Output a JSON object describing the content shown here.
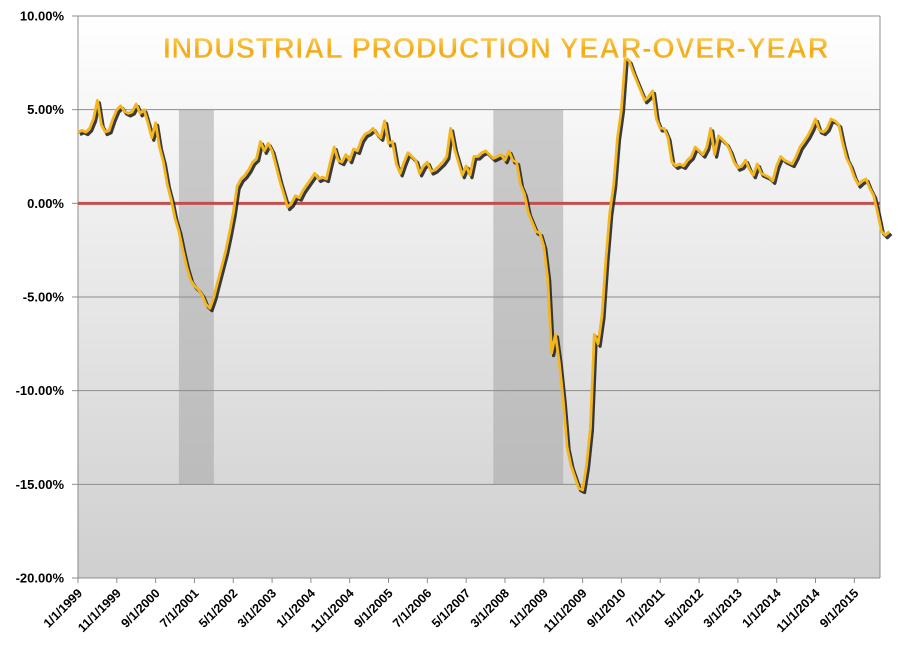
{
  "chart_data": {
    "type": "line",
    "title": "INDUSTRIAL PRODUCTION YEAR-OVER-YEAR",
    "xlabel": "",
    "ylabel": "",
    "ylim": [
      -20,
      10
    ],
    "x_range": [
      "1999-01",
      "2015-12"
    ],
    "y_ticks": [
      10,
      5,
      0,
      -5,
      -10,
      -15,
      -20
    ],
    "y_tick_labels": [
      "10.00%",
      "5.00%",
      "0.00%",
      "-5.00%",
      "-10.00%",
      "-15.00%",
      "-20.00%"
    ],
    "x_ticks": [
      "1999-01",
      "1999-11",
      "2000-09",
      "2001-07",
      "2002-05",
      "2003-03",
      "2004-01",
      "2004-11",
      "2005-09",
      "2006-07",
      "2007-05",
      "2008-03",
      "2009-01",
      "2009-11",
      "2010-09",
      "2011-07",
      "2012-05",
      "2013-03",
      "2014-01",
      "2014-11",
      "2015-09"
    ],
    "x_tick_labels": [
      "1/1/1999",
      "11/1/1999",
      "9/1/2000",
      "7/1/2001",
      "5/1/2002",
      "3/1/2003",
      "1/1/2004",
      "11/1/2004",
      "9/1/2005",
      "7/1/2006",
      "5/1/2007",
      "3/1/2008",
      "1/1/2009",
      "11/1/2009",
      "9/1/2010",
      "7/1/2011",
      "5/1/2012",
      "3/1/2013",
      "1/1/2014",
      "11/1/2014",
      "9/1/2015"
    ],
    "grid": true,
    "legend": "none",
    "colors": {
      "line": "#f4b61c",
      "line_shadow": "#1a1a1a",
      "zero_line": "#c0504d",
      "recession": "#a6a6a6",
      "title": "#f6b21a"
    },
    "recessions": [
      {
        "start": "2001-03",
        "end": "2001-12",
        "ymin": -15,
        "ymax": 5
      },
      {
        "start": "2007-12",
        "end": "2009-06",
        "ymin": -15,
        "ymax": 5
      }
    ],
    "series": [
      {
        "points": [
          [
            "1999-01",
            3.8
          ],
          [
            "1999-02",
            3.9
          ],
          [
            "1999-03",
            3.8
          ],
          [
            "1999-04",
            4.0
          ],
          [
            "1999-05",
            4.5
          ],
          [
            "1999-06",
            5.5
          ],
          [
            "1999-07",
            4.2
          ],
          [
            "1999-08",
            3.8
          ],
          [
            "1999-09",
            3.9
          ],
          [
            "1999-10",
            4.5
          ],
          [
            "1999-11",
            5.0
          ],
          [
            "1999-12",
            5.2
          ],
          [
            "2000-01",
            4.9
          ],
          [
            "2000-02",
            4.8
          ],
          [
            "2000-03",
            4.9
          ],
          [
            "2000-04",
            5.3
          ],
          [
            "2000-05",
            4.8
          ],
          [
            "2000-06",
            5.0
          ],
          [
            "2000-07",
            4.3
          ],
          [
            "2000-08",
            3.5
          ],
          [
            "2000-09",
            4.3
          ],
          [
            "2000-10",
            3.0
          ],
          [
            "2000-11",
            2.2
          ],
          [
            "2000-12",
            1.0
          ],
          [
            "2001-01",
            0.2
          ],
          [
            "2001-02",
            -0.8
          ],
          [
            "2001-03",
            -1.5
          ],
          [
            "2001-04",
            -2.5
          ],
          [
            "2001-05",
            -3.4
          ],
          [
            "2001-06",
            -4.1
          ],
          [
            "2001-07",
            -4.4
          ],
          [
            "2001-08",
            -4.6
          ],
          [
            "2001-09",
            -4.9
          ],
          [
            "2001-10",
            -5.4
          ],
          [
            "2001-11",
            -5.6
          ],
          [
            "2001-12",
            -5.0
          ],
          [
            "2002-01",
            -4.2
          ],
          [
            "2002-02",
            -3.4
          ],
          [
            "2002-03",
            -2.6
          ],
          [
            "2002-04",
            -1.6
          ],
          [
            "2002-05",
            -0.5
          ],
          [
            "2002-06",
            0.9
          ],
          [
            "2002-07",
            1.3
          ],
          [
            "2002-08",
            1.5
          ],
          [
            "2002-09",
            1.8
          ],
          [
            "2002-10",
            2.2
          ],
          [
            "2002-11",
            2.4
          ],
          [
            "2002-12",
            3.3
          ],
          [
            "2003-01",
            2.8
          ],
          [
            "2003-02",
            3.2
          ],
          [
            "2003-03",
            2.8
          ],
          [
            "2003-04",
            2.0
          ],
          [
            "2003-05",
            1.2
          ],
          [
            "2003-06",
            0.5
          ],
          [
            "2003-07",
            -0.2
          ],
          [
            "2003-08",
            0.0
          ],
          [
            "2003-09",
            0.4
          ],
          [
            "2003-10",
            0.3
          ],
          [
            "2003-11",
            0.7
          ],
          [
            "2003-12",
            1.0
          ],
          [
            "2004-01",
            1.3
          ],
          [
            "2004-02",
            1.6
          ],
          [
            "2004-03",
            1.3
          ],
          [
            "2004-04",
            1.4
          ],
          [
            "2004-05",
            1.3
          ],
          [
            "2004-06",
            2.2
          ],
          [
            "2004-07",
            3.0
          ],
          [
            "2004-08",
            2.3
          ],
          [
            "2004-09",
            2.2
          ],
          [
            "2004-10",
            2.6
          ],
          [
            "2004-11",
            2.3
          ],
          [
            "2004-12",
            2.9
          ],
          [
            "2005-01",
            2.8
          ],
          [
            "2005-02",
            3.4
          ],
          [
            "2005-03",
            3.7
          ],
          [
            "2005-04",
            3.8
          ],
          [
            "2005-05",
            4.0
          ],
          [
            "2005-06",
            3.7
          ],
          [
            "2005-07",
            3.5
          ],
          [
            "2005-08",
            4.4
          ],
          [
            "2005-09",
            3.2
          ],
          [
            "2005-10",
            3.3
          ],
          [
            "2005-11",
            2.1
          ],
          [
            "2005-12",
            1.6
          ],
          [
            "2006-01",
            2.2
          ],
          [
            "2006-02",
            2.7
          ],
          [
            "2006-03",
            2.5
          ],
          [
            "2006-04",
            2.3
          ],
          [
            "2006-05",
            1.6
          ],
          [
            "2006-06",
            2.0
          ],
          [
            "2006-07",
            2.2
          ],
          [
            "2006-08",
            1.7
          ],
          [
            "2006-09",
            1.8
          ],
          [
            "2006-10",
            2.0
          ],
          [
            "2006-11",
            2.2
          ],
          [
            "2006-12",
            2.5
          ],
          [
            "2007-01",
            4.0
          ],
          [
            "2007-02",
            2.9
          ],
          [
            "2007-03",
            2.2
          ],
          [
            "2007-04",
            1.5
          ],
          [
            "2007-05",
            2.0
          ],
          [
            "2007-06",
            1.5
          ],
          [
            "2007-07",
            2.5
          ],
          [
            "2007-08",
            2.5
          ],
          [
            "2007-09",
            2.7
          ],
          [
            "2007-10",
            2.8
          ],
          [
            "2007-11",
            2.6
          ],
          [
            "2007-12",
            2.4
          ],
          [
            "2008-01",
            2.5
          ],
          [
            "2008-02",
            2.6
          ],
          [
            "2008-03",
            2.3
          ],
          [
            "2008-04",
            2.8
          ],
          [
            "2008-05",
            2.3
          ],
          [
            "2008-06",
            2.2
          ],
          [
            "2008-07",
            1.0
          ],
          [
            "2008-08",
            0.5
          ],
          [
            "2008-09",
            -0.5
          ],
          [
            "2008-10",
            -1.0
          ],
          [
            "2008-11",
            -1.5
          ],
          [
            "2008-12",
            -1.6
          ],
          [
            "2009-01",
            -2.3
          ],
          [
            "2009-02",
            -4.0
          ],
          [
            "2009-03",
            -8.0
          ],
          [
            "2009-04",
            -7.0
          ],
          [
            "2009-05",
            -8.5
          ],
          [
            "2009-06",
            -10.5
          ],
          [
            "2009-07",
            -13.0
          ],
          [
            "2009-08",
            -14.0
          ],
          [
            "2009-09",
            -14.6
          ],
          [
            "2009-10",
            -15.2
          ],
          [
            "2009-11",
            -15.3
          ],
          [
            "2009-12",
            -14.0
          ],
          [
            "2010-01",
            -12.0
          ],
          [
            "2010-02",
            -7.0
          ],
          [
            "2010-03",
            -7.5
          ],
          [
            "2010-04",
            -6.0
          ],
          [
            "2010-05",
            -3.0
          ],
          [
            "2010-06",
            -0.5
          ],
          [
            "2010-07",
            1.0
          ],
          [
            "2010-08",
            3.5
          ],
          [
            "2010-09",
            5.0
          ],
          [
            "2010-10",
            7.8
          ],
          [
            "2010-11",
            7.6
          ],
          [
            "2010-12",
            7.0
          ],
          [
            "2011-01",
            6.5
          ],
          [
            "2011-02",
            6.0
          ],
          [
            "2011-03",
            5.5
          ],
          [
            "2011-04",
            5.7
          ],
          [
            "2011-05",
            6.0
          ],
          [
            "2011-06",
            4.5
          ],
          [
            "2011-07",
            4.0
          ],
          [
            "2011-08",
            4.0
          ],
          [
            "2011-09",
            3.5
          ],
          [
            "2011-10",
            2.2
          ],
          [
            "2011-11",
            2.0
          ],
          [
            "2011-12",
            2.1
          ],
          [
            "2012-01",
            2.0
          ],
          [
            "2012-02",
            2.3
          ],
          [
            "2012-03",
            2.5
          ],
          [
            "2012-04",
            3.0
          ],
          [
            "2012-05",
            2.8
          ],
          [
            "2012-06",
            2.6
          ],
          [
            "2012-07",
            3.0
          ],
          [
            "2012-08",
            4.0
          ],
          [
            "2012-09",
            2.6
          ],
          [
            "2012-10",
            3.6
          ],
          [
            "2012-11",
            3.4
          ],
          [
            "2012-12",
            3.2
          ],
          [
            "2013-01",
            2.8
          ],
          [
            "2013-02",
            2.2
          ],
          [
            "2013-03",
            1.9
          ],
          [
            "2013-04",
            2.0
          ],
          [
            "2013-05",
            2.3
          ],
          [
            "2013-06",
            1.8
          ],
          [
            "2013-07",
            1.5
          ],
          [
            "2013-08",
            2.1
          ],
          [
            "2013-09",
            1.6
          ],
          [
            "2013-10",
            1.5
          ],
          [
            "2013-11",
            1.4
          ],
          [
            "2013-12",
            1.2
          ],
          [
            "2014-01",
            2.0
          ],
          [
            "2014-02",
            2.5
          ],
          [
            "2014-03",
            2.3
          ],
          [
            "2014-04",
            2.2
          ],
          [
            "2014-05",
            2.1
          ],
          [
            "2014-06",
            2.5
          ],
          [
            "2014-07",
            3.0
          ],
          [
            "2014-08",
            3.3
          ],
          [
            "2014-09",
            3.6
          ],
          [
            "2014-10",
            4.0
          ],
          [
            "2014-11",
            4.5
          ],
          [
            "2014-12",
            3.9
          ],
          [
            "2015-01",
            3.8
          ],
          [
            "2015-02",
            4.0
          ],
          [
            "2015-03",
            4.5
          ],
          [
            "2015-04",
            4.4
          ],
          [
            "2015-05",
            4.2
          ],
          [
            "2015-06",
            3.2
          ],
          [
            "2015-07",
            2.4
          ],
          [
            "2015-08",
            2.0
          ],
          [
            "2015-09",
            1.4
          ],
          [
            "2015-10",
            1.0
          ],
          [
            "2015-11",
            1.2
          ],
          [
            "2015-12",
            1.3
          ],
          [
            "2016-01",
            0.8
          ],
          [
            "2016-02",
            0.4
          ],
          [
            "2016-03",
            -0.5
          ],
          [
            "2016-04",
            -1.5
          ],
          [
            "2016-05",
            -1.7
          ],
          [
            "2016-06",
            -1.5
          ]
        ]
      }
    ]
  }
}
